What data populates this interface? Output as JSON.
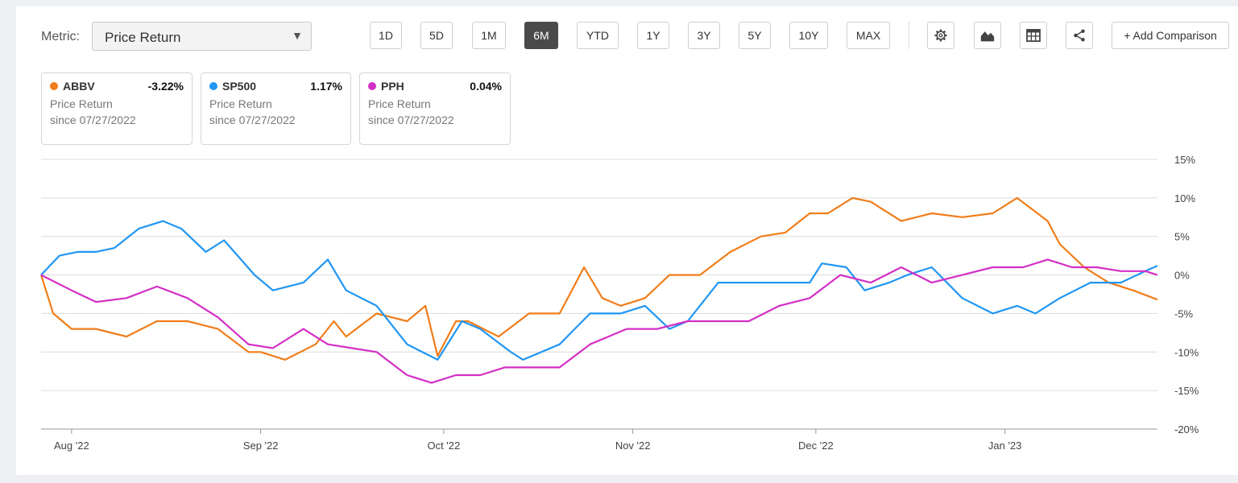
{
  "toolbar": {
    "metric_label": "Metric:",
    "metric_value": "Price Return",
    "ranges": [
      "1D",
      "5D",
      "1M",
      "6M",
      "YTD",
      "1Y",
      "3Y",
      "5Y",
      "10Y",
      "MAX"
    ],
    "active_range": "6M",
    "icons": [
      "gear-icon",
      "area-chart-icon",
      "table-icon",
      "share-icon"
    ],
    "add_comparison": "+ Add Comparison"
  },
  "legend_cards": [
    {
      "name": "ABBV",
      "pct": "-3.22%",
      "line1": "Price Return",
      "line2": "since 07/27/2022",
      "color": "#f07d1a"
    },
    {
      "name": "SP500",
      "pct": "1.17%",
      "line1": "Price Return",
      "line2": "since 07/27/2022",
      "color": "#2196f3"
    },
    {
      "name": "PPH",
      "pct": "0.04%",
      "line1": "Price Return",
      "line2": "since 07/27/2022",
      "color": "#d42fc6"
    }
  ],
  "chart_data": {
    "type": "line",
    "ylim": [
      -20,
      15
    ],
    "y_ticks": [
      15,
      10,
      5,
      0,
      -5,
      -10,
      -15,
      -20
    ],
    "y_tick_labels": [
      "15%",
      "10%",
      "5%",
      "0%",
      "-5%",
      "-10%",
      "-15%",
      "-20%"
    ],
    "grid": true,
    "x_tick_labels": [
      "Aug '22",
      "Sep '22",
      "Oct '22",
      "Nov '22",
      "Dec '22",
      "Jan '23"
    ],
    "x_tick_dates": [
      "2022-08-01",
      "2022-09-01",
      "2022-10-01",
      "2022-11-01",
      "2022-12-01",
      "2023-01-01"
    ],
    "x_start": "2022-07-27",
    "x_end": "2023-01-26",
    "series": [
      {
        "name": "ABBV",
        "color": "#f07d1a",
        "dates": [
          "2022-07-27",
          "2022-07-29",
          "2022-08-01",
          "2022-08-05",
          "2022-08-10",
          "2022-08-15",
          "2022-08-20",
          "2022-08-25",
          "2022-08-30",
          "2022-09-01",
          "2022-09-05",
          "2022-09-10",
          "2022-09-13",
          "2022-09-15",
          "2022-09-20",
          "2022-09-25",
          "2022-09-28",
          "2022-09-30",
          "2022-10-03",
          "2022-10-05",
          "2022-10-10",
          "2022-10-15",
          "2022-10-20",
          "2022-10-24",
          "2022-10-27",
          "2022-10-30",
          "2022-11-03",
          "2022-11-07",
          "2022-11-12",
          "2022-11-17",
          "2022-11-22",
          "2022-11-26",
          "2022-11-30",
          "2022-12-03",
          "2022-12-07",
          "2022-12-10",
          "2022-12-15",
          "2022-12-20",
          "2022-12-25",
          "2022-12-30",
          "2023-01-03",
          "2023-01-08",
          "2023-01-10",
          "2023-01-14",
          "2023-01-18",
          "2023-01-22",
          "2023-01-26"
        ],
        "values": [
          0,
          -5,
          -7,
          -7,
          -8,
          -6,
          -6,
          -7,
          -10,
          -10,
          -11,
          -9,
          -6,
          -8,
          -5,
          -6,
          -4,
          -10.5,
          -6,
          -6,
          -8,
          -5,
          -5,
          1,
          -3,
          -4,
          -3,
          0,
          0,
          3,
          5,
          5.5,
          8,
          8,
          10,
          9.5,
          7,
          8,
          7.5,
          8,
          10,
          7,
          4,
          1,
          -1,
          -2,
          -3.2
        ]
      },
      {
        "name": "SP500",
        "color": "#2196f3",
        "dates": [
          "2022-07-27",
          "2022-07-30",
          "2022-08-02",
          "2022-08-05",
          "2022-08-08",
          "2022-08-12",
          "2022-08-16",
          "2022-08-19",
          "2022-08-23",
          "2022-08-26",
          "2022-08-31",
          "2022-09-03",
          "2022-09-08",
          "2022-09-12",
          "2022-09-15",
          "2022-09-20",
          "2022-09-25",
          "2022-09-30",
          "2022-10-04",
          "2022-10-07",
          "2022-10-12",
          "2022-10-14",
          "2022-10-20",
          "2022-10-25",
          "2022-10-30",
          "2022-11-03",
          "2022-11-07",
          "2022-11-10",
          "2022-11-15",
          "2022-11-20",
          "2022-11-25",
          "2022-11-30",
          "2022-12-02",
          "2022-12-06",
          "2022-12-09",
          "2022-12-13",
          "2022-12-16",
          "2022-12-20",
          "2022-12-25",
          "2022-12-30",
          "2023-01-03",
          "2023-01-06",
          "2023-01-10",
          "2023-01-15",
          "2023-01-20",
          "2023-01-24",
          "2023-01-26"
        ],
        "values": [
          0,
          2.5,
          3,
          3,
          3.5,
          6,
          7,
          6,
          3,
          4.5,
          0,
          -2,
          -1,
          2,
          -2,
          -4,
          -9,
          -11,
          -6,
          -7,
          -10,
          -11,
          -9,
          -5,
          -5,
          -4,
          -7,
          -6,
          -1,
          -1,
          -1,
          -1,
          1.5,
          1,
          -2,
          -1,
          0,
          1,
          -3,
          -5,
          -4,
          -5,
          -3,
          -1,
          -1,
          0.5,
          1.2
        ]
      },
      {
        "name": "PPH",
        "color": "#d42fc6",
        "dates": [
          "2022-07-27",
          "2022-08-01",
          "2022-08-05",
          "2022-08-10",
          "2022-08-15",
          "2022-08-20",
          "2022-08-25",
          "2022-08-30",
          "2022-09-03",
          "2022-09-08",
          "2022-09-12",
          "2022-09-16",
          "2022-09-20",
          "2022-09-25",
          "2022-09-29",
          "2022-10-03",
          "2022-10-07",
          "2022-10-11",
          "2022-10-15",
          "2022-10-20",
          "2022-10-25",
          "2022-10-31",
          "2022-11-05",
          "2022-11-10",
          "2022-11-15",
          "2022-11-20",
          "2022-11-25",
          "2022-11-30",
          "2022-12-05",
          "2022-12-10",
          "2022-12-15",
          "2022-12-20",
          "2022-12-25",
          "2022-12-30",
          "2023-01-04",
          "2023-01-08",
          "2023-01-12",
          "2023-01-16",
          "2023-01-20",
          "2023-01-24",
          "2023-01-26"
        ],
        "values": [
          0,
          -2,
          -3.5,
          -3,
          -1.5,
          -3,
          -5.5,
          -9,
          -9.5,
          -7,
          -9,
          -9.5,
          -10,
          -13,
          -14,
          -13,
          -13,
          -12,
          -12,
          -12,
          -9,
          -7,
          -7,
          -6,
          -6,
          -6,
          -4,
          -3,
          0,
          -1,
          1,
          -1,
          0,
          1,
          1,
          2,
          1,
          1,
          0.5,
          0.5,
          0
        ]
      }
    ]
  }
}
